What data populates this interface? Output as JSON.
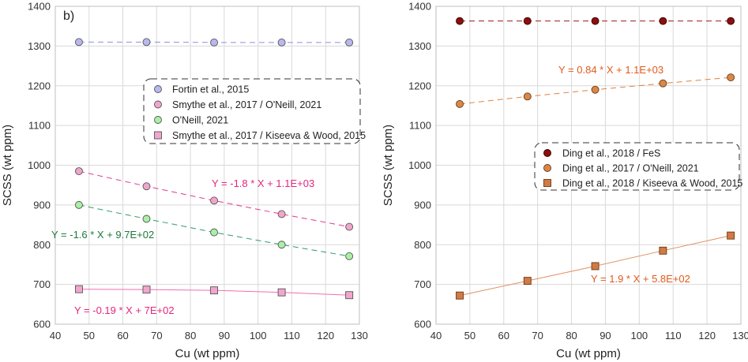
{
  "chart_data": [
    {
      "type": "scatter",
      "panel_label": "b)",
      "xlabel": "Cu (wt ppm)",
      "ylabel": "SCSS (wt ppm)",
      "xlim": [
        40,
        130
      ],
      "ylim": [
        600,
        1400
      ],
      "x_ticks": [
        40,
        50,
        60,
        70,
        80,
        90,
        100,
        110,
        120,
        130
      ],
      "y_ticks": [
        600,
        700,
        800,
        900,
        1000,
        1100,
        1200,
        1300,
        1400
      ],
      "grid": true,
      "legend_position": "right, upper-middle",
      "series": [
        {
          "name": "Fortin et al., 2015",
          "marker": "circle",
          "color": "#b8b8ee",
          "edge": "#555555",
          "line_color": "#8f8fe0",
          "line_style": "dashed",
          "x": [
            47,
            67,
            87,
            107,
            127
          ],
          "y": [
            1310,
            1310,
            1309,
            1309,
            1309
          ]
        },
        {
          "name": "Smythe et al., 2017 / O'Neill, 2021",
          "marker": "circle",
          "color": "#f0a6cb",
          "edge": "#555555",
          "line_color": "#e4388c",
          "line_style": "dashed",
          "equation": "Y = -1.8 * X + 1.1E+03",
          "equation_color": "#e4267f",
          "x": [
            47,
            67,
            87,
            107,
            127
          ],
          "y": [
            985,
            947,
            911,
            877,
            845
          ]
        },
        {
          "name": "O'Neill, 2021",
          "marker": "circle",
          "color": "#a9f0a4",
          "edge": "#555555",
          "line_color": "#2e9b6a",
          "line_style": "dashed",
          "equation": "Y = -1.6 * X + 9.7E+02",
          "equation_color": "#1c7a3a",
          "x": [
            47,
            67,
            87,
            107,
            127
          ],
          "y": [
            900,
            865,
            831,
            800,
            771
          ]
        },
        {
          "name": "Smythe et al., 2017 / Kiseeva & Wood, 2015",
          "marker": "square",
          "color": "#f2a6ce",
          "edge": "#555555",
          "line_color": "#f06fb0",
          "line_style": "solid",
          "equation": "Y = -0.19 * X + 7E+02",
          "equation_color": "#e4267f",
          "x": [
            47,
            67,
            87,
            107,
            127
          ],
          "y": [
            688,
            687,
            685,
            680,
            673
          ]
        }
      ]
    },
    {
      "type": "scatter",
      "xlabel": "Cu (wt ppm)",
      "ylabel": "SCSS (wt ppm)",
      "xlim": [
        40,
        130
      ],
      "ylim": [
        600,
        1400
      ],
      "x_ticks": [
        40,
        50,
        60,
        70,
        80,
        90,
        100,
        110,
        120,
        130
      ],
      "y_ticks": [
        600,
        700,
        800,
        900,
        1000,
        1100,
        1200,
        1300,
        1400
      ],
      "grid": true,
      "legend_position": "right, middle",
      "series": [
        {
          "name": "Ding et al., 2018 / FeS",
          "marker": "circle",
          "color": "#8b0f0f",
          "edge": "#3a0000",
          "line_color": "#9b1a1a",
          "line_style": "dashed",
          "x": [
            47,
            67,
            87,
            107,
            127
          ],
          "y": [
            1363,
            1363,
            1363,
            1363,
            1363
          ]
        },
        {
          "name": "Ding et al., 2017 / O'Neill, 2021",
          "marker": "circle",
          "color": "#d9884a",
          "edge": "#6a3a10",
          "line_color": "#e0803a",
          "line_style": "dashed",
          "equation": "Y = 0.84 * X + 1.1E+03",
          "equation_color": "#e05a1a",
          "x": [
            47,
            67,
            87,
            107,
            127
          ],
          "y": [
            1154,
            1173,
            1190,
            1206,
            1221
          ]
        },
        {
          "name": "Ding et al., 2018 / Kiseeva & Wood, 2015",
          "marker": "square",
          "color": "#d07a45",
          "edge": "#6a3a10",
          "line_color": "#e09060",
          "line_style": "solid",
          "equation": "Y = 1.9 * X + 5.8E+02",
          "equation_color": "#e05a1a",
          "x": [
            47,
            67,
            87,
            107,
            127
          ],
          "y": [
            672,
            709,
            746,
            785,
            823
          ]
        }
      ]
    }
  ]
}
